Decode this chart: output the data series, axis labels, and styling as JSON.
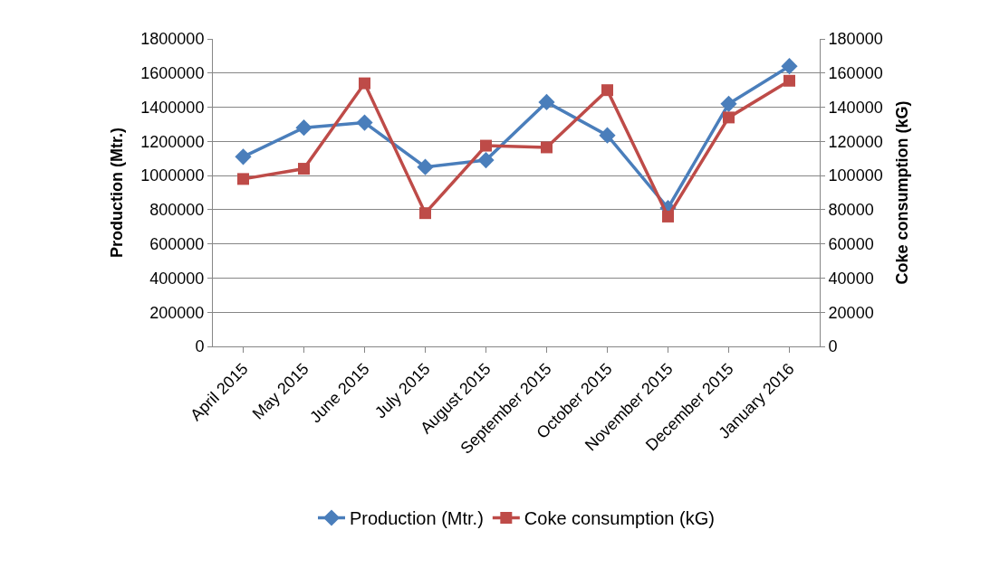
{
  "chart_data": {
    "type": "line",
    "categories": [
      "April 2015",
      "May 2015",
      "June 2015",
      "July 2015",
      "August 2015",
      "September 2015",
      "October 2015",
      "November 2015",
      "December 2015",
      "January 2016"
    ],
    "series": [
      {
        "name": "Production (Mtr.)",
        "color": "#4a7ebb",
        "marker": "diamond",
        "values": [
          1110000,
          1280000,
          1310000,
          1050000,
          1090000,
          1430000,
          1235000,
          810000,
          1420000,
          1640000
        ]
      },
      {
        "name": "Coke consumption (kG)",
        "color": "#be4b48",
        "marker": "square",
        "axis": "y2",
        "values": [
          98000,
          104000,
          154000,
          78000,
          117500,
          116500,
          150000,
          76000,
          134000,
          155500
        ]
      }
    ],
    "ylabel": "Production (Mtr.)",
    "y2label": "Coke consumption (kG)",
    "ylim": [
      0,
      1800000
    ],
    "yticks": [
      0,
      200000,
      400000,
      600000,
      800000,
      1000000,
      1200000,
      1400000,
      1600000,
      1800000
    ],
    "y2lim": [
      0,
      180000
    ],
    "y2ticks": [
      0,
      20000,
      40000,
      60000,
      80000,
      100000,
      120000,
      140000,
      160000,
      180000
    ],
    "grid": "y",
    "legend": "bottom",
    "line_style": "solid"
  }
}
